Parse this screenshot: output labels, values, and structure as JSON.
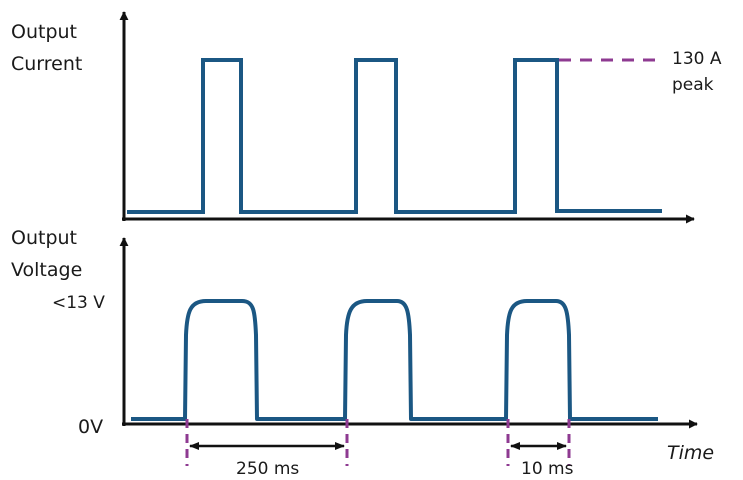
{
  "current_axis": {
    "label_line1": "Output",
    "label_line2": "Current",
    "annotation_line1": "130 A",
    "annotation_line2": "peak"
  },
  "voltage_axis": {
    "label_line1": "Output",
    "label_line2": "Voltage",
    "high_label": "<13 V",
    "low_label": "0V"
  },
  "time_axis": {
    "label": "Time",
    "period_label": "250 ms",
    "pulse_width_label": "10 ms"
  },
  "colors": {
    "waveform": "#1b5783",
    "axis": "#111111",
    "marker": "#8e3a91"
  }
}
